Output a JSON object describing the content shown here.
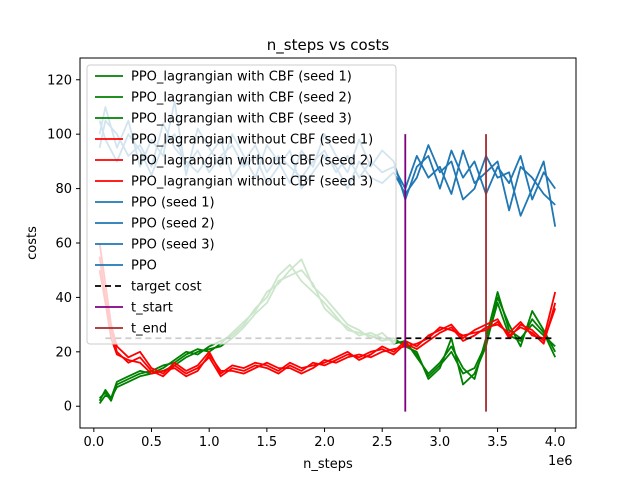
{
  "chart_data": {
    "type": "line",
    "title": "n_steps vs costs",
    "xlabel": "n_steps",
    "ylabel": "costs",
    "x_offset_label": "1e6",
    "xlim": [
      -0.12,
      4.18
    ],
    "ylim": [
      -8,
      128
    ],
    "x_ticks": [
      0.0,
      0.5,
      1.0,
      1.5,
      2.0,
      2.5,
      3.0,
      3.5,
      4.0
    ],
    "x_tick_labels": [
      "0.0",
      "0.5",
      "1.0",
      "1.5",
      "2.0",
      "2.5",
      "3.0",
      "3.5",
      "4.0"
    ],
    "y_ticks": [
      0,
      20,
      40,
      60,
      80,
      100,
      120
    ],
    "y_tick_labels": [
      "0",
      "20",
      "40",
      "60",
      "80",
      "100",
      "120"
    ],
    "grid": false,
    "legend_position": "upper-left",
    "colors": {
      "with_cbf": "#008000",
      "without_cbf": "#ff0000",
      "ppo": "#1f77b4",
      "target": "#000000",
      "t_start": "#800080",
      "t_end": "#a52a2a"
    },
    "legend": [
      {
        "label": "PPO_lagrangian with CBF (seed 1)",
        "color": "#008000",
        "dash": false
      },
      {
        "label": "PPO_lagrangian with CBF (seed 2)",
        "color": "#008000",
        "dash": false
      },
      {
        "label": "PPO_lagrangian with CBF (seed 3)",
        "color": "#008000",
        "dash": false
      },
      {
        "label": "PPO_lagrangian without CBF (seed 1)",
        "color": "#ff0000",
        "dash": false
      },
      {
        "label": "PPO_lagrangian without CBF (seed 2)",
        "color": "#ff0000",
        "dash": false
      },
      {
        "label": "PPO_lagrangian without CBF (seed 3)",
        "color": "#ff0000",
        "dash": false
      },
      {
        "label": "PPO (seed 1)",
        "color": "#1f77b4",
        "dash": false
      },
      {
        "label": "PPO (seed 2)",
        "color": "#1f77b4",
        "dash": false
      },
      {
        "label": "PPO (seed 3)",
        "color": "#1f77b4",
        "dash": false
      },
      {
        "label": "PPO",
        "color": "#1f77b4",
        "dash": false
      },
      {
        "label": "target cost",
        "color": "#000000",
        "dash": true
      },
      {
        "label": "t_start",
        "color": "#800080",
        "dash": false
      },
      {
        "label": "t_end",
        "color": "#a52a2a",
        "dash": false
      }
    ],
    "target_cost": {
      "value": 25,
      "x_range": [
        0.1,
        4.0
      ]
    },
    "vlines": [
      {
        "name": "t_start",
        "x": 2.7,
        "y_range": [
          -2,
          100
        ],
        "color": "#800080"
      },
      {
        "name": "t_end",
        "x": 3.4,
        "y_range": [
          -2,
          100
        ],
        "color": "#a52a2a"
      }
    ],
    "series": [
      {
        "name": "PPO_lagrangian with CBF (seed 1)",
        "color": "#008000",
        "x": [
          0.05,
          0.1,
          0.15,
          0.2,
          0.3,
          0.4,
          0.5,
          0.6,
          0.7,
          0.8,
          0.9,
          1.0,
          1.1,
          1.2,
          1.3,
          1.4,
          1.5,
          1.6,
          1.7,
          1.8,
          1.9,
          2.0,
          2.1,
          2.2,
          2.3,
          2.4,
          2.5,
          2.6,
          2.7,
          2.8,
          2.9,
          3.0,
          3.1,
          3.2,
          3.3,
          3.4,
          3.5,
          3.6,
          3.7,
          3.8,
          3.9,
          4.0
        ],
        "y": [
          2,
          6,
          3,
          9,
          11,
          13,
          12,
          14,
          17,
          20,
          19,
          22,
          24,
          26,
          30,
          36,
          40,
          48,
          52,
          46,
          42,
          38,
          33,
          28,
          27,
          26,
          24,
          25,
          22,
          20,
          10,
          14,
          25,
          8,
          12,
          22,
          40,
          30,
          22,
          35,
          28,
          20
        ]
      },
      {
        "name": "PPO_lagrangian with CBF (seed 2)",
        "color": "#008000",
        "x": [
          0.05,
          0.1,
          0.15,
          0.2,
          0.3,
          0.4,
          0.5,
          0.6,
          0.7,
          0.8,
          0.9,
          1.0,
          1.1,
          1.2,
          1.3,
          1.4,
          1.5,
          1.6,
          1.7,
          1.8,
          1.9,
          2.0,
          2.1,
          2.2,
          2.3,
          2.4,
          2.5,
          2.6,
          2.7,
          2.8,
          2.9,
          3.0,
          3.1,
          3.2,
          3.3,
          3.4,
          3.5,
          3.6,
          3.7,
          3.8,
          3.9,
          4.0
        ],
        "y": [
          3,
          5,
          2,
          8,
          10,
          12,
          13,
          15,
          16,
          19,
          21,
          20,
          23,
          27,
          31,
          35,
          42,
          45,
          50,
          54,
          44,
          40,
          35,
          30,
          28,
          25,
          27,
          23,
          24,
          18,
          12,
          16,
          22,
          14,
          10,
          25,
          42,
          28,
          25,
          30,
          26,
          22
        ]
      },
      {
        "name": "PPO_lagrangian with CBF (seed 3)",
        "color": "#008000",
        "x": [
          0.05,
          0.1,
          0.15,
          0.2,
          0.3,
          0.4,
          0.5,
          0.6,
          0.7,
          0.8,
          0.9,
          1.0,
          1.1,
          1.2,
          1.3,
          1.4,
          1.5,
          1.6,
          1.7,
          1.8,
          1.9,
          2.0,
          2.1,
          2.2,
          2.3,
          2.4,
          2.5,
          2.6,
          2.7,
          2.8,
          2.9,
          3.0,
          3.1,
          3.2,
          3.3,
          3.4,
          3.5,
          3.6,
          3.7,
          3.8,
          3.9,
          4.0
        ],
        "y": [
          1,
          4,
          3,
          7,
          9,
          11,
          12,
          13,
          15,
          18,
          20,
          21,
          22,
          25,
          29,
          34,
          38,
          46,
          48,
          50,
          45,
          36,
          32,
          29,
          26,
          27,
          25,
          24,
          23,
          19,
          11,
          15,
          20,
          12,
          14,
          23,
          38,
          26,
          24,
          32,
          27,
          18
        ]
      },
      {
        "name": "PPO_lagrangian without CBF (seed 1)",
        "color": "#ff0000",
        "x": [
          0.05,
          0.1,
          0.15,
          0.2,
          0.3,
          0.4,
          0.5,
          0.6,
          0.7,
          0.8,
          0.9,
          1.0,
          1.1,
          1.2,
          1.3,
          1.4,
          1.5,
          1.6,
          1.7,
          1.8,
          1.9,
          2.0,
          2.1,
          2.2,
          2.3,
          2.4,
          2.5,
          2.6,
          2.7,
          2.8,
          2.9,
          3.0,
          3.1,
          3.2,
          3.3,
          3.4,
          3.5,
          3.6,
          3.7,
          3.8,
          3.9,
          4.0
        ],
        "y": [
          60,
          45,
          30,
          22,
          18,
          20,
          14,
          12,
          16,
          13,
          15,
          20,
          12,
          15,
          14,
          16,
          15,
          13,
          16,
          14,
          15,
          16,
          18,
          20,
          17,
          19,
          22,
          20,
          24,
          22,
          26,
          28,
          30,
          25,
          28,
          30,
          32,
          25,
          30,
          28,
          24,
          36
        ]
      },
      {
        "name": "PPO_lagrangian without CBF (seed 2)",
        "color": "#ff0000",
        "x": [
          0.05,
          0.1,
          0.15,
          0.2,
          0.3,
          0.4,
          0.5,
          0.6,
          0.7,
          0.8,
          0.9,
          1.0,
          1.1,
          1.2,
          1.3,
          1.4,
          1.5,
          1.6,
          1.7,
          1.8,
          1.9,
          2.0,
          2.1,
          2.2,
          2.3,
          2.4,
          2.5,
          2.6,
          2.7,
          2.8,
          2.9,
          3.0,
          3.1,
          3.2,
          3.3,
          3.4,
          3.5,
          3.6,
          3.7,
          3.8,
          3.9,
          4.0
        ],
        "y": [
          55,
          40,
          28,
          20,
          16,
          18,
          13,
          11,
          15,
          12,
          14,
          18,
          11,
          14,
          13,
          15,
          14,
          12,
          15,
          13,
          16,
          15,
          17,
          19,
          18,
          20,
          21,
          19,
          23,
          21,
          24,
          27,
          29,
          24,
          26,
          29,
          30,
          27,
          31,
          26,
          25,
          42
        ]
      },
      {
        "name": "PPO_lagrangian without CBF (seed 3)",
        "color": "#ff0000",
        "x": [
          0.05,
          0.1,
          0.15,
          0.2,
          0.3,
          0.4,
          0.5,
          0.6,
          0.7,
          0.8,
          0.9,
          1.0,
          1.1,
          1.2,
          1.3,
          1.4,
          1.5,
          1.6,
          1.7,
          1.8,
          1.9,
          2.0,
          2.1,
          2.2,
          2.3,
          2.4,
          2.5,
          2.6,
          2.7,
          2.8,
          2.9,
          3.0,
          3.1,
          3.2,
          3.3,
          3.4,
          3.5,
          3.6,
          3.7,
          3.8,
          3.9,
          4.0
        ],
        "y": [
          50,
          38,
          25,
          19,
          17,
          16,
          12,
          13,
          14,
          11,
          13,
          19,
          13,
          13,
          12,
          14,
          16,
          14,
          14,
          12,
          14,
          17,
          16,
          18,
          19,
          18,
          20,
          21,
          22,
          23,
          25,
          29,
          28,
          26,
          27,
          28,
          31,
          26,
          29,
          27,
          23,
          38
        ]
      },
      {
        "name": "PPO (seed 1)",
        "color": "#1f77b4",
        "x": [
          0.05,
          0.1,
          0.2,
          0.3,
          0.4,
          0.5,
          0.6,
          0.7,
          0.8,
          0.9,
          1.0,
          1.1,
          1.2,
          1.3,
          1.4,
          1.5,
          1.6,
          1.7,
          1.8,
          1.9,
          2.0,
          2.1,
          2.2,
          2.3,
          2.4,
          2.5,
          2.6,
          2.7,
          2.8,
          2.9,
          3.0,
          3.1,
          3.2,
          3.3,
          3.4,
          3.5,
          3.6,
          3.7,
          3.8,
          3.9,
          4.0
        ],
        "y": [
          100,
          110,
          95,
          105,
          88,
          98,
          92,
          112,
          85,
          102,
          95,
          88,
          100,
          92,
          84,
          96,
          90,
          82,
          94,
          88,
          100,
          92,
          86,
          98,
          88,
          94,
          90,
          76,
          88,
          92,
          80,
          94,
          84,
          90,
          78,
          88,
          82,
          92,
          76,
          86,
          80
        ]
      },
      {
        "name": "PPO (seed 2)",
        "color": "#1f77b4",
        "x": [
          0.05,
          0.1,
          0.2,
          0.3,
          0.4,
          0.5,
          0.6,
          0.7,
          0.8,
          0.9,
          1.0,
          1.1,
          1.2,
          1.3,
          1.4,
          1.5,
          1.6,
          1.7,
          1.8,
          1.9,
          2.0,
          2.1,
          2.2,
          2.3,
          2.4,
          2.5,
          2.6,
          2.7,
          2.8,
          2.9,
          3.0,
          3.1,
          3.2,
          3.3,
          3.4,
          3.5,
          3.6,
          3.7,
          3.8,
          3.9,
          4.0
        ],
        "y": [
          95,
          105,
          100,
          92,
          96,
          88,
          104,
          95,
          90,
          86,
          92,
          98,
          84,
          90,
          96,
          86,
          92,
          88,
          84,
          90,
          94,
          86,
          92,
          84,
          90,
          86,
          88,
          80,
          92,
          84,
          88,
          78,
          94,
          82,
          86,
          90,
          72,
          88,
          84,
          78,
          74
        ]
      },
      {
        "name": "PPO (seed 3)",
        "color": "#1f77b4",
        "x": [
          0.05,
          0.1,
          0.2,
          0.3,
          0.4,
          0.5,
          0.6,
          0.7,
          0.8,
          0.9,
          1.0,
          1.1,
          1.2,
          1.3,
          1.4,
          1.5,
          1.6,
          1.7,
          1.8,
          1.9,
          2.0,
          2.1,
          2.2,
          2.3,
          2.4,
          2.5,
          2.6,
          2.7,
          2.8,
          2.9,
          3.0,
          3.1,
          3.2,
          3.3,
          3.4,
          3.5,
          3.6,
          3.7,
          3.8,
          3.9,
          4.0
        ],
        "y": [
          105,
          98,
          90,
          100,
          94,
          85,
          96,
          100,
          88,
          94,
          86,
          92,
          96,
          88,
          92,
          82,
          88,
          94,
          80,
          86,
          92,
          88,
          80,
          90,
          84,
          82,
          86,
          78,
          84,
          96,
          86,
          90,
          76,
          80,
          92,
          84,
          86,
          70,
          80,
          90,
          66
        ]
      }
    ]
  }
}
